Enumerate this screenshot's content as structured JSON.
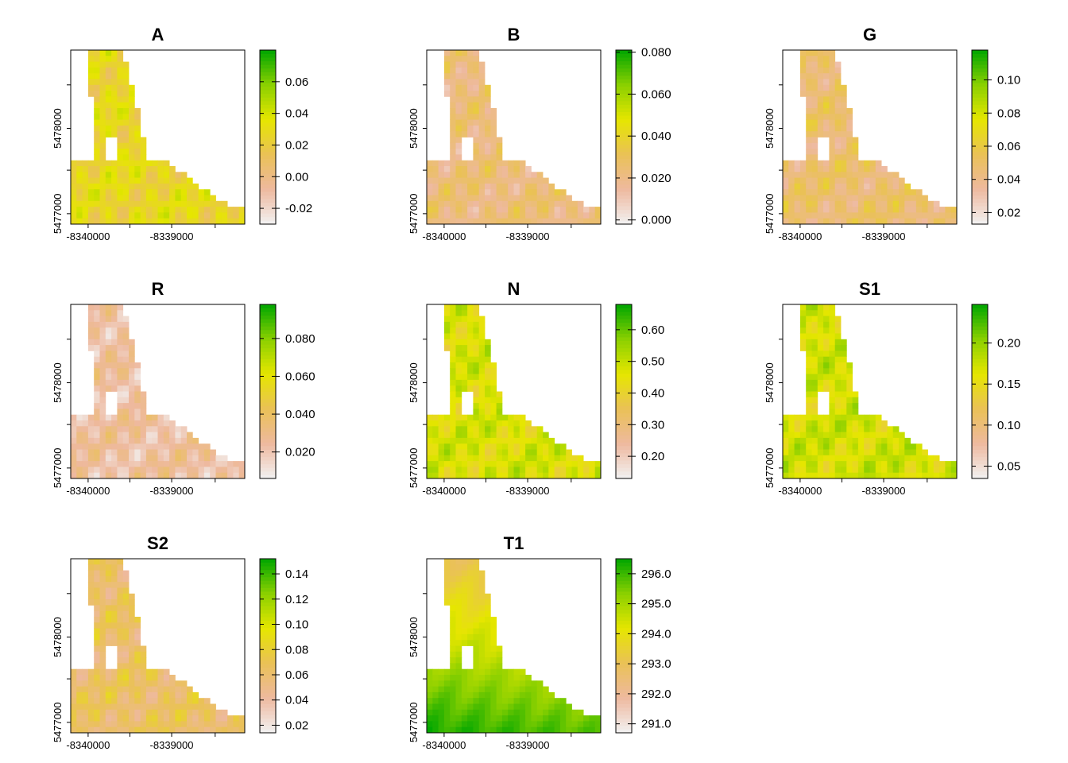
{
  "chart_data": [
    {
      "type": "heatmap",
      "title": "A",
      "x_ticks": [
        "-8340000",
        "-8339000"
      ],
      "y_ticks": [
        "5477000",
        "5478000"
      ],
      "colorbar_ticks": [
        "-0.02",
        "0.00",
        "0.02",
        "0.04",
        "0.06"
      ],
      "colorbar_range": [
        -0.03,
        0.08
      ],
      "tick_values": [
        -0.02,
        0.0,
        0.02,
        0.04,
        0.06
      ],
      "base_level": 0.52
    },
    {
      "type": "heatmap",
      "title": "B",
      "x_ticks": [
        "-8340000",
        "-8339000"
      ],
      "y_ticks": [
        "5477000",
        "5478000"
      ],
      "colorbar_ticks": [
        "0.000",
        "0.020",
        "0.040",
        "0.060",
        "0.080"
      ],
      "colorbar_range": [
        -0.002,
        0.081
      ],
      "tick_values": [
        0.0,
        0.02,
        0.04,
        0.06,
        0.08
      ],
      "base_level": 0.3
    },
    {
      "type": "heatmap",
      "title": "G",
      "x_ticks": [
        "-8340000",
        "-8339000"
      ],
      "y_ticks": [
        "5477000",
        "5478000"
      ],
      "colorbar_ticks": [
        "0.02",
        "0.04",
        "0.06",
        "0.08",
        "0.10"
      ],
      "colorbar_range": [
        0.013,
        0.118
      ],
      "tick_values": [
        0.02,
        0.04,
        0.06,
        0.08,
        0.1
      ],
      "base_level": 0.33
    },
    {
      "type": "heatmap",
      "title": "R",
      "x_ticks": [
        "-8340000",
        "-8339000"
      ],
      "y_ticks": [
        "5477000",
        "5478000"
      ],
      "colorbar_ticks": [
        "0.020",
        "0.040",
        "0.060",
        "0.080"
      ],
      "colorbar_range": [
        0.006,
        0.098
      ],
      "tick_values": [
        0.02,
        0.04,
        0.06,
        0.08
      ],
      "base_level": 0.2
    },
    {
      "type": "heatmap",
      "title": "N",
      "x_ticks": [
        "-8340000",
        "-8339000"
      ],
      "y_ticks": [
        "5477000",
        "5478000"
      ],
      "colorbar_ticks": [
        "0.20",
        "0.30",
        "0.40",
        "0.50",
        "0.60"
      ],
      "colorbar_range": [
        0.13,
        0.68
      ],
      "tick_values": [
        0.2,
        0.3,
        0.4,
        0.5,
        0.6
      ],
      "base_level": 0.62
    },
    {
      "type": "heatmap",
      "title": "S1",
      "x_ticks": [
        "-8340000",
        "-8339000"
      ],
      "y_ticks": [
        "5477000",
        "5478000"
      ],
      "colorbar_ticks": [
        "0.05",
        "0.10",
        "0.15",
        "0.20"
      ],
      "colorbar_range": [
        0.035,
        0.247
      ],
      "tick_values": [
        0.05,
        0.1,
        0.15,
        0.2
      ],
      "base_level": 0.64
    },
    {
      "type": "heatmap",
      "title": "S2",
      "x_ticks": [
        "-8340000",
        "-8339000"
      ],
      "y_ticks": [
        "5477000",
        "5478000"
      ],
      "colorbar_ticks": [
        "0.02",
        "0.04",
        "0.06",
        "0.08",
        "0.10",
        "0.12",
        "0.14"
      ],
      "colorbar_range": [
        0.014,
        0.152
      ],
      "tick_values": [
        0.02,
        0.04,
        0.06,
        0.08,
        0.1,
        0.12,
        0.14
      ],
      "base_level": 0.36
    },
    {
      "type": "heatmap",
      "title": "T1",
      "x_ticks": [
        "-8340000",
        "-8339000"
      ],
      "y_ticks": [
        "5477000",
        "5478000"
      ],
      "colorbar_ticks": [
        "291.0",
        "292.0",
        "293.0",
        "294.0",
        "295.0",
        "296.0"
      ],
      "colorbar_range": [
        290.7,
        296.5
      ],
      "tick_values": [
        291.0,
        292.0,
        293.0,
        294.0,
        295.0,
        296.0
      ],
      "base_level": 0.75
    }
  ],
  "colors": {
    "palette": [
      "#f2f2f2",
      "#eeb99f",
      "#eac157",
      "#e6e600",
      "#8bd000",
      "#00a600"
    ],
    "frame": "#000000"
  }
}
